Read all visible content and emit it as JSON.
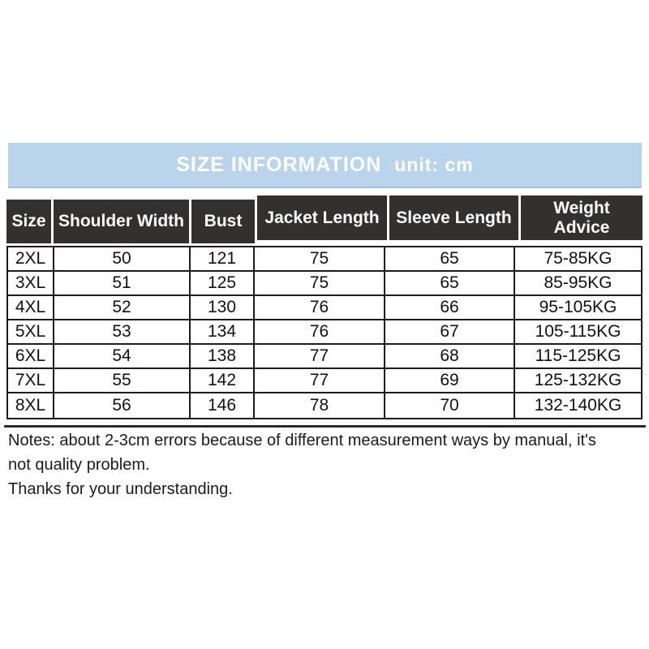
{
  "title_bar": {
    "title": "SIZE INFORMATION",
    "unit_label": "unit: cm",
    "bg_color": "#bad4ec",
    "text_color": "#ffffff"
  },
  "chart_data": {
    "type": "table",
    "title": "SIZE INFORMATION",
    "unit": "cm",
    "columns": [
      "Size",
      "Shoulder Width",
      "Bust",
      "Jacket Length",
      "Sleeve Length",
      "Weight Advice"
    ],
    "rows": [
      [
        "2XL",
        50,
        121,
        75,
        65,
        "75-85KG"
      ],
      [
        "3XL",
        51,
        125,
        75,
        65,
        "85-95KG"
      ],
      [
        "4XL",
        52,
        130,
        76,
        66,
        "95-105KG"
      ],
      [
        "5XL",
        53,
        134,
        76,
        67,
        "105-115KG"
      ],
      [
        "6XL",
        54,
        138,
        77,
        68,
        "115-125KG"
      ],
      [
        "7XL",
        55,
        142,
        77,
        69,
        "125-132KG"
      ],
      [
        "8XL",
        56,
        146,
        78,
        70,
        "132-140KG"
      ]
    ],
    "header_bg": "#323130",
    "border_color": "#1d1d1d"
  },
  "notes": {
    "line1": "Notes: about 2-3cm errors because of different measurement ways by manual, it's not quality problem.",
    "line2": "Thanks for your understanding."
  }
}
